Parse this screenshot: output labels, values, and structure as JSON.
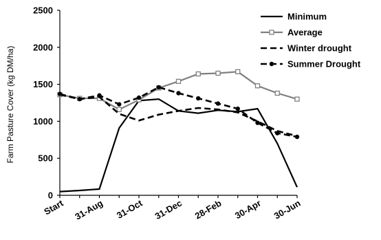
{
  "chart_data": {
    "type": "line",
    "ylabel": "Farm Pasture Cover (kg DM/ha)",
    "xlabel": "",
    "title": "",
    "ylim": [
      0,
      2500
    ],
    "y_ticks": [
      0,
      500,
      1000,
      1500,
      2000,
      2500
    ],
    "x_tick_labels": [
      "Start",
      "31-Aug",
      "31-Oct",
      "31-Dec",
      "28-Feb",
      "30-Apr",
      "30-Jun"
    ],
    "x_positions_per_tick": 2,
    "legend_position": "top-right",
    "grid": false,
    "series": [
      {
        "name": "Minimum",
        "style": "solid",
        "marker": "none",
        "color": "#000000",
        "values": [
          50,
          65,
          85,
          910,
          1280,
          1300,
          1140,
          1110,
          1150,
          1130,
          1170,
          700,
          110
        ]
      },
      {
        "name": "Average",
        "style": "solid",
        "marker": "open-square",
        "color": "#7f7f7f",
        "values": [
          1360,
          1310,
          1310,
          1160,
          1290,
          1450,
          1540,
          1640,
          1650,
          1670,
          1480,
          1380,
          1300
        ]
      },
      {
        "name": "Winter drought",
        "style": "dashed",
        "marker": "none",
        "color": "#000000",
        "values": [
          1360,
          1300,
          1330,
          1100,
          1010,
          1090,
          1140,
          1180,
          1160,
          1120,
          1000,
          870,
          800
        ]
      },
      {
        "name": "Summer Drought",
        "style": "dashed",
        "marker": "filled-circle",
        "color": "#000000",
        "values": [
          1370,
          1300,
          1350,
          1230,
          1320,
          1460,
          1380,
          1310,
          1240,
          1170,
          980,
          840,
          790
        ]
      }
    ]
  }
}
